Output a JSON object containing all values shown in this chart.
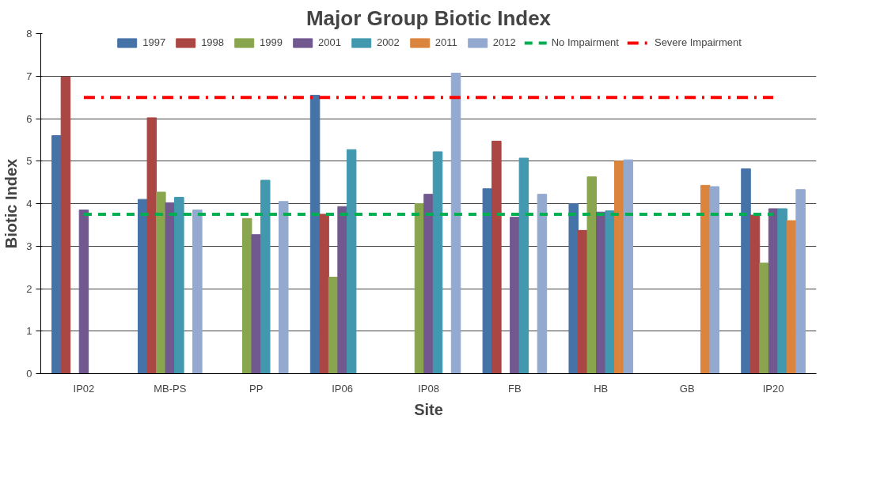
{
  "chart_data": {
    "type": "bar",
    "title": "Major Group Biotic Index",
    "xlabel": "Site",
    "ylabel": "Biotic Index",
    "categories": [
      "IP02",
      "MB-PS",
      "PP",
      "IP06",
      "IP08",
      "FB",
      "HB",
      "GB",
      "IP20"
    ],
    "series": [
      {
        "name": "1997",
        "color": "#4572a7",
        "values": [
          5.6,
          4.1,
          null,
          6.55,
          null,
          4.35,
          4.0,
          null,
          4.82
        ]
      },
      {
        "name": "1998",
        "color": "#aa4643",
        "values": [
          6.98,
          6.02,
          null,
          3.75,
          null,
          5.47,
          3.37,
          null,
          3.73
        ]
      },
      {
        "name": "1999",
        "color": "#89a54e",
        "values": [
          null,
          4.27,
          3.65,
          2.27,
          4.0,
          null,
          4.63,
          null,
          2.6
        ]
      },
      {
        "name": "2001",
        "color": "#71588f",
        "values": [
          3.85,
          4.02,
          3.27,
          3.93,
          4.22,
          3.68,
          3.8,
          null,
          3.88
        ]
      },
      {
        "name": "2002",
        "color": "#4198af",
        "values": [
          null,
          4.15,
          4.55,
          5.27,
          5.22,
          5.07,
          3.83,
          null,
          3.88
        ]
      },
      {
        "name": "2011",
        "color": "#db843d",
        "values": [
          null,
          null,
          null,
          null,
          null,
          null,
          5.0,
          4.43,
          3.6
        ]
      },
      {
        "name": "2012",
        "color": "#93a9cf",
        "values": [
          null,
          3.85,
          4.05,
          null,
          7.07,
          4.22,
          5.03,
          4.4,
          4.33
        ]
      }
    ],
    "ref_lines": [
      {
        "axis": "y",
        "value": 3.75,
        "label": "No Impairment",
        "color": "#00b050",
        "line_style": "dashed"
      },
      {
        "axis": "y",
        "value": 6.5,
        "label": "Severe Impairment",
        "color": "#ff0000",
        "line_style": "dashdot"
      }
    ],
    "ylim": [
      0,
      8
    ],
    "yticks": [
      0,
      1,
      2,
      3,
      4,
      5,
      6,
      7,
      8
    ],
    "grid": "y",
    "legend": "top"
  }
}
